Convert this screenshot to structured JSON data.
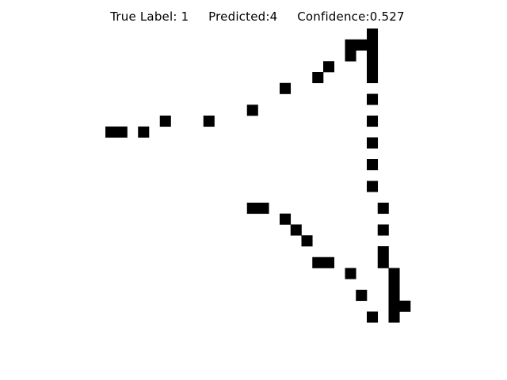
{
  "title": "True Label: 1     Predicted:4     Confidence:0.527",
  "true_label": "1",
  "predicted_label": "4",
  "confidence": "0.527",
  "image": {
    "rows": 28,
    "cols": 28,
    "pixel_color": "#000000",
    "background": "#ffffff",
    "on_pixels": [
      [
        0,
        24
      ],
      [
        1,
        22
      ],
      [
        1,
        23
      ],
      [
        1,
        24
      ],
      [
        2,
        22
      ],
      [
        2,
        24
      ],
      [
        3,
        20
      ],
      [
        3,
        24
      ],
      [
        4,
        19
      ],
      [
        4,
        24
      ],
      [
        5,
        16
      ],
      [
        6,
        24
      ],
      [
        7,
        13
      ],
      [
        8,
        5
      ],
      [
        8,
        9
      ],
      [
        8,
        24
      ],
      [
        9,
        0
      ],
      [
        9,
        1
      ],
      [
        9,
        3
      ],
      [
        10,
        24
      ],
      [
        12,
        24
      ],
      [
        14,
        24
      ],
      [
        16,
        13
      ],
      [
        16,
        14
      ],
      [
        16,
        25
      ],
      [
        17,
        16
      ],
      [
        18,
        17
      ],
      [
        18,
        25
      ],
      [
        19,
        18
      ],
      [
        20,
        25
      ],
      [
        21,
        19
      ],
      [
        21,
        20
      ],
      [
        21,
        25
      ],
      [
        22,
        22
      ],
      [
        22,
        26
      ],
      [
        23,
        26
      ],
      [
        24,
        23
      ],
      [
        24,
        26
      ],
      [
        25,
        26
      ],
      [
        25,
        27
      ],
      [
        26,
        24
      ],
      [
        26,
        26
      ]
    ]
  }
}
